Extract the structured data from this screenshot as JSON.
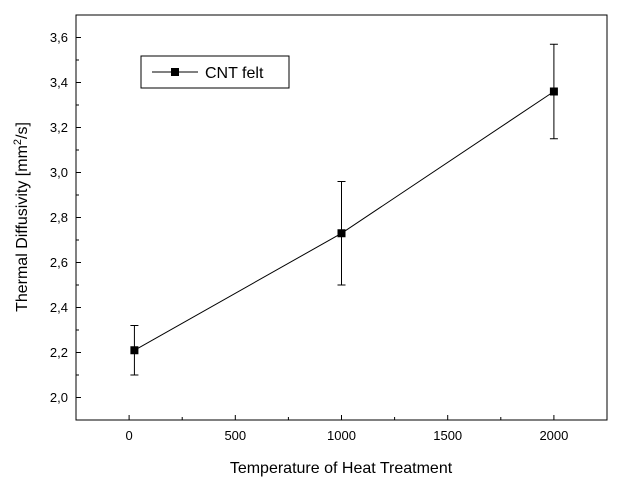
{
  "chart_data": {
    "type": "line",
    "title": "",
    "xlabel": "Temperature of Heat Treatment",
    "ylabel": "Thermal Diffusivity [mm²/s]",
    "ylabel_parts": {
      "pre": "Thermal Diffusivity [mm",
      "sup": "2",
      "post": "/s]"
    },
    "xlim": [
      -250,
      2250
    ],
    "ylim": [
      1.9,
      3.7
    ],
    "x_ticks": [
      0,
      500,
      1000,
      1500,
      2000
    ],
    "x_tick_labels": [
      "0",
      "500",
      "1000",
      "1500",
      "2000"
    ],
    "y_ticks": [
      2.0,
      2.2,
      2.4,
      2.6,
      2.8,
      3.0,
      3.2,
      3.4,
      3.6
    ],
    "y_tick_labels": [
      "2,0",
      "2,2",
      "2,4",
      "2,6",
      "2,8",
      "3,0",
      "3,2",
      "3,4",
      "3,6"
    ],
    "grid": false,
    "legend": {
      "position": "top-left",
      "entries": [
        "CNT felt"
      ]
    },
    "series": [
      {
        "name": "CNT felt",
        "color": "#000000",
        "marker": "square",
        "x": [
          25,
          1000,
          2000
        ],
        "y": [
          2.21,
          2.73,
          3.36
        ],
        "error_low": [
          2.1,
          2.5,
          3.15
        ],
        "error_high": [
          2.32,
          2.96,
          3.57
        ]
      }
    ]
  }
}
